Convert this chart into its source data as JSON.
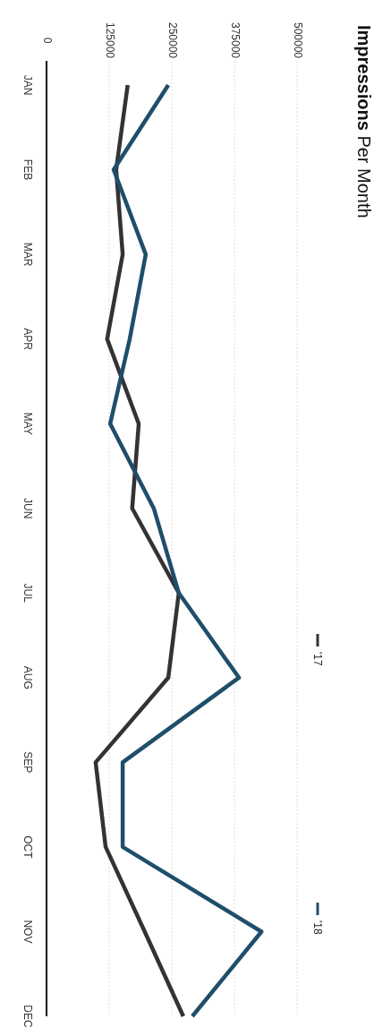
{
  "chart_data": {
    "type": "line",
    "orientation": "horizontal",
    "title": "Impressions Per Month",
    "categories": [
      "JAN",
      "FEB",
      "MAR",
      "APR",
      "MAY",
      "JUN",
      "JUL",
      "AUG",
      "SEP",
      "OCT",
      "NOV",
      "DEC"
    ],
    "series": [
      {
        "name": "'17",
        "color": "#333333",
        "values": [
          162000,
          139000,
          152000,
          121000,
          184000,
          171000,
          264000,
          243000,
          98000,
          118000,
          196000,
          273000
        ]
      },
      {
        "name": "'18",
        "color": "#1f4e6b",
        "values": [
          243000,
          134000,
          198000,
          166000,
          127000,
          214000,
          264000,
          384000,
          152000,
          152000,
          429000,
          291000
        ]
      }
    ],
    "xlim": [
      0,
      500000
    ],
    "xticks": [
      0,
      125000,
      250000,
      375000,
      500000
    ],
    "grid": "x",
    "legend": "bottom right",
    "line_style": "solid"
  }
}
